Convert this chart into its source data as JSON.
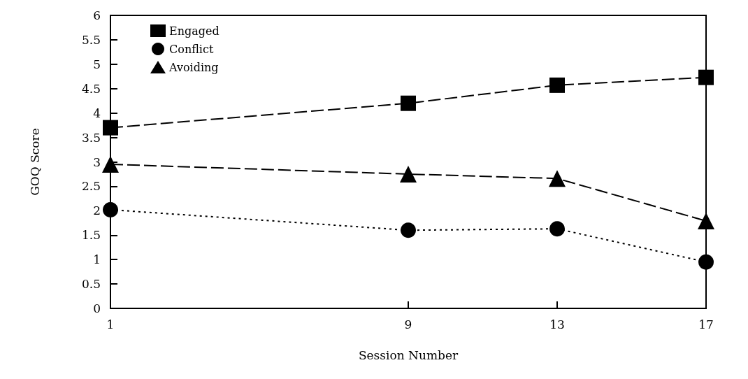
{
  "chart_data": {
    "type": "line",
    "xlabel": "Session Number",
    "ylabel": "GOQ Score",
    "x": [
      1,
      9,
      13,
      17
    ],
    "xlim": [
      1,
      17
    ],
    "xticks": [
      1,
      9,
      13,
      17
    ],
    "ylim": [
      0,
      6
    ],
    "yticks": [
      0,
      0.5,
      1,
      1.5,
      2,
      2.5,
      3,
      3.5,
      4,
      4.5,
      5,
      5.5,
      6
    ],
    "grid": false,
    "legend": "top left",
    "series": [
      {
        "name": "Engaged",
        "color": "#000000",
        "marker": "square",
        "line_style": "dashed",
        "values": [
          3.7,
          4.2,
          4.57,
          4.73
        ]
      },
      {
        "name": "Conflict",
        "color": "#000000",
        "marker": "circle",
        "line_style": "dotted",
        "values": [
          2.02,
          1.6,
          1.63,
          0.95
        ]
      },
      {
        "name": "Avoiding",
        "color": "#000000",
        "marker": "triangle",
        "line_style": "dashed",
        "values": [
          2.95,
          2.75,
          2.66,
          1.79
        ]
      }
    ]
  }
}
